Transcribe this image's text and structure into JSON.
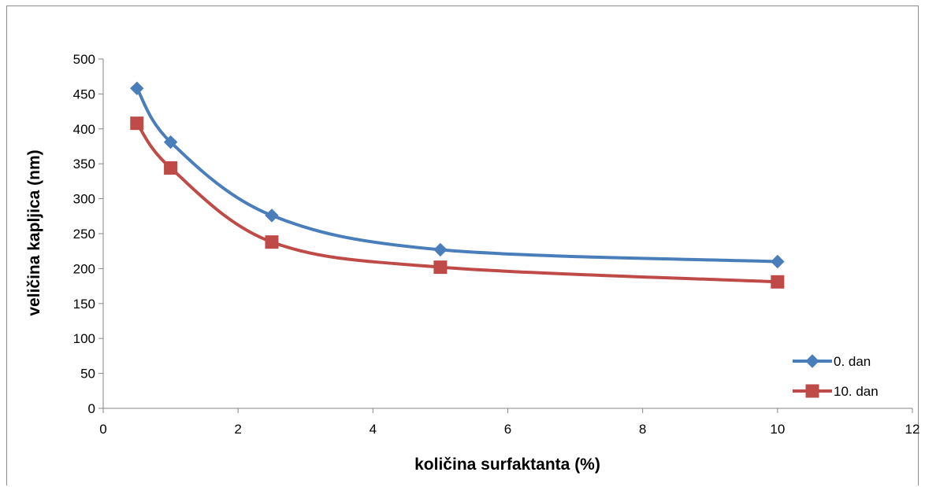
{
  "chart_data": {
    "type": "line",
    "title": "",
    "xlabel": "količina surfaktanta (%)",
    "ylabel": "veličina kapljica (nm)",
    "xlim": [
      0,
      12
    ],
    "ylim": [
      0,
      500
    ],
    "x_ticks": [
      "0",
      "2",
      "4",
      "6",
      "8",
      "10",
      "12"
    ],
    "y_ticks": [
      "0",
      "50",
      "100",
      "150",
      "200",
      "250",
      "300",
      "350",
      "400",
      "450",
      "500"
    ],
    "grid": false,
    "smooth": true,
    "legend_position": "right",
    "series": [
      {
        "name": "0. dan",
        "color": "#4a7ebb",
        "marker": "diamond",
        "x": [
          0.5,
          1,
          2.5,
          5,
          10
        ],
        "y": [
          458,
          381,
          276,
          227,
          210
        ]
      },
      {
        "name": "10. dan",
        "color": "#be4b48",
        "marker": "square",
        "x": [
          0.5,
          1,
          2.5,
          5,
          10
        ],
        "y": [
          408,
          344,
          238,
          202,
          181
        ]
      }
    ]
  }
}
